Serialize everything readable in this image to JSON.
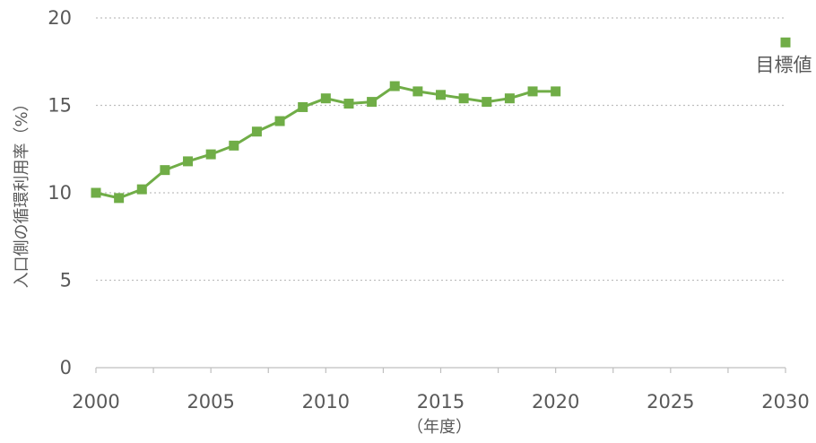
{
  "chart_data": {
    "type": "line",
    "xlabel": "（年度）",
    "ylabel": "入口側の循環利用率（%）",
    "xlim": [
      2000,
      2030
    ],
    "ylim": [
      0,
      20
    ],
    "x_ticks": [
      "2000",
      "2005",
      "2010",
      "2015",
      "2020",
      "2025",
      "2030"
    ],
    "y_ticks": [
      "0",
      "5",
      "10",
      "15",
      "20"
    ],
    "grid": "horizontal dotted",
    "series": [
      {
        "color": "#70ad47",
        "x": [
          2000,
          2001,
          2002,
          2003,
          2004,
          2005,
          2006,
          2007,
          2008,
          2009,
          2010,
          2011,
          2012,
          2013,
          2014,
          2015,
          2016,
          2017,
          2018,
          2019,
          2020
        ],
        "values": [
          10.0,
          9.7,
          10.2,
          11.3,
          11.8,
          12.2,
          12.7,
          13.5,
          14.1,
          14.9,
          15.4,
          15.1,
          15.2,
          16.1,
          15.8,
          15.6,
          15.4,
          15.2,
          15.4,
          15.8,
          15.8
        ]
      }
    ],
    "target": {
      "label": "目標値",
      "x": 2030,
      "value": 18.6,
      "color": "#70ad47"
    }
  }
}
